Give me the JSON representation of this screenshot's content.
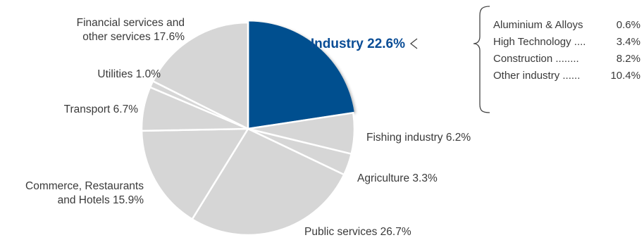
{
  "chart_data": {
    "type": "pie",
    "slices": [
      {
        "label": "Industry 22.6%",
        "value": 22.6,
        "color": "#02508f",
        "highlight": true
      },
      {
        "label": "Fishing industry 6.2%",
        "value": 6.2,
        "color": "#d6d6d6"
      },
      {
        "label": "Agriculture 3.3%",
        "value": 3.3,
        "color": "#d6d6d6"
      },
      {
        "label": "Public services 26.7%",
        "value": 26.7,
        "color": "#d6d6d6"
      },
      {
        "label": "Commerce, Restaurants and Hotels 15.9%",
        "value": 15.9,
        "color": "#d6d6d6",
        "label_lines": [
          "Commerce, Restaurants",
          "and Hotels 15.9%"
        ]
      },
      {
        "label": "Transport 6.7%",
        "value": 6.7,
        "color": "#d6d6d6"
      },
      {
        "label": "Utilities 1.0%",
        "value": 1.0,
        "color": "#d6d6d6"
      },
      {
        "label": "Financial services and other services 17.6%",
        "value": 17.6,
        "color": "#d6d6d6",
        "label_lines": [
          "Financial services and",
          "other services 17.6%"
        ]
      }
    ],
    "breakdown": {
      "of": "Industry 22.6%",
      "items": [
        {
          "name": "Aluminium & Alloys",
          "dots": "",
          "value": "0.6%"
        },
        {
          "name": "High Technology",
          "dots": "....",
          "value": "3.4%"
        },
        {
          "name": "Construction",
          "dots": "........",
          "value": "8.2%"
        },
        {
          "name": "Other industry",
          "dots": "......",
          "value": "10.4%"
        }
      ]
    }
  }
}
